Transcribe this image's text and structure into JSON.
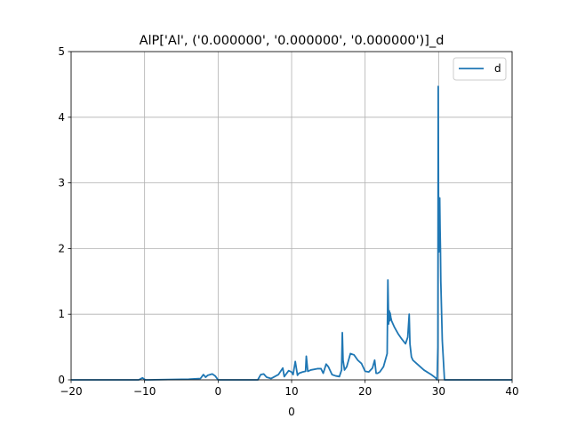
{
  "chart_data": {
    "type": "line",
    "title": "AlP['Al', ('0.000000', '0.000000', '0.000000')]_d",
    "xlabel": "0",
    "ylabel": "",
    "xlim": [
      -20,
      40
    ],
    "ylim": [
      0,
      5
    ],
    "xticks": [
      "-20",
      "-10",
      "0",
      "10",
      "20",
      "30",
      "40"
    ],
    "yticks": [
      "0",
      "1",
      "2",
      "3",
      "4",
      "5"
    ],
    "grid": true,
    "legend_position": "top-right",
    "line_color": "#1f77b4",
    "series": [
      {
        "name": "d",
        "x": [
          -20,
          -10.8,
          -10.3,
          -9.9,
          -9.5,
          -4,
          -2.4,
          -2.0,
          -1.7,
          -1.4,
          -0.8,
          -0.4,
          0.0,
          0.4,
          5.4,
          5.8,
          6.2,
          6.6,
          7.2,
          8.2,
          8.8,
          9.0,
          9.2,
          9.6,
          10.0,
          10.2,
          10.5,
          10.8,
          11.0,
          11.5,
          11.9,
          12.0,
          12.2,
          12.6,
          13.5,
          14.0,
          14.3,
          14.7,
          15.0,
          15.5,
          16.0,
          16.5,
          16.8,
          16.9,
          17.0,
          17.2,
          17.5,
          18.0,
          18.5,
          19.0,
          19.5,
          20.0,
          20.5,
          21.0,
          21.3,
          21.5,
          21.7,
          22.0,
          22.5,
          23.0,
          23.1,
          23.2,
          23.3,
          23.35,
          23.4,
          23.5,
          23.6,
          24.0,
          24.5,
          25.0,
          25.5,
          25.8,
          26.0,
          26.1,
          26.3,
          26.5,
          27.0,
          28.0,
          29.0,
          29.6,
          29.8,
          29.9,
          29.95,
          30.0,
          30.05,
          30.1,
          30.15,
          30.2,
          30.25,
          30.3,
          30.5,
          30.8,
          40
        ],
        "y": [
          0,
          0,
          0.03,
          0,
          0,
          0.01,
          0.02,
          0.08,
          0.04,
          0.07,
          0.09,
          0.06,
          0,
          0,
          0,
          0.08,
          0.09,
          0.04,
          0.02,
          0.08,
          0.18,
          0.05,
          0.08,
          0.14,
          0.12,
          0.08,
          0.28,
          0.07,
          0.1,
          0.12,
          0.13,
          0.36,
          0.13,
          0.15,
          0.17,
          0.17,
          0.1,
          0.24,
          0.2,
          0.08,
          0.06,
          0.05,
          0.15,
          0.72,
          0.3,
          0.15,
          0.2,
          0.4,
          0.38,
          0.3,
          0.25,
          0.13,
          0.12,
          0.18,
          0.3,
          0.1,
          0.1,
          0.12,
          0.2,
          0.4,
          1.52,
          0.85,
          1.05,
          0.9,
          1.02,
          0.95,
          0.9,
          0.8,
          0.7,
          0.62,
          0.55,
          0.65,
          1.0,
          0.55,
          0.35,
          0.3,
          0.25,
          0.15,
          0.08,
          0.03,
          0,
          0.5,
          4.47,
          2.2,
          1.95,
          2.6,
          2.77,
          2.3,
          2.0,
          1.5,
          0.6,
          0,
          0
        ]
      }
    ]
  }
}
